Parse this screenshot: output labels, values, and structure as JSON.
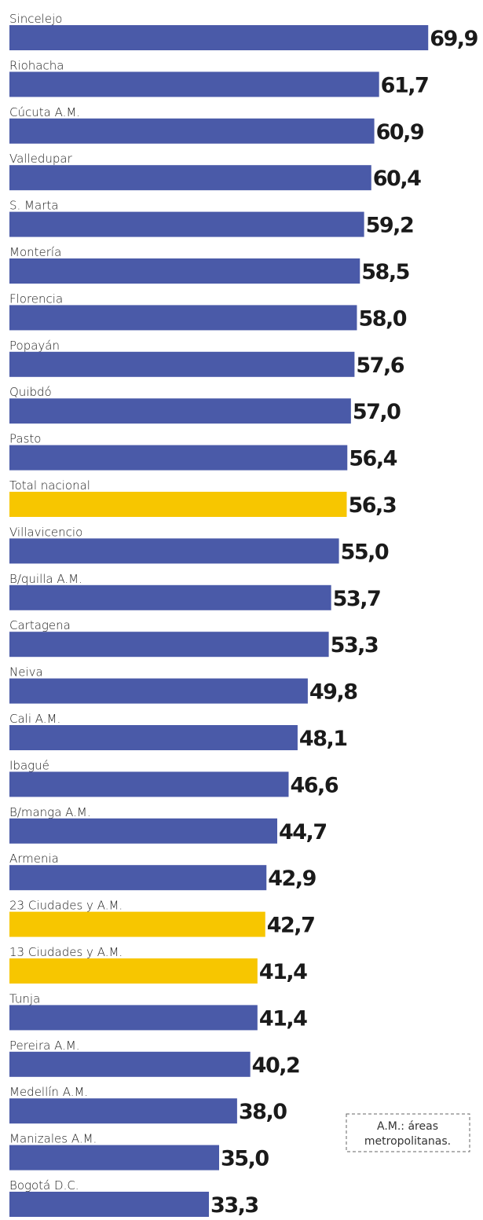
{
  "chart_data": {
    "type": "bar",
    "orientation": "horizontal",
    "categories": [
      "Sincelejo",
      "Riohacha",
      "Cúcuta A.M.",
      "Valledupar",
      "S. Marta",
      "Montería",
      "Florencia",
      "Popayán",
      "Quibdó",
      "Pasto",
      "Total nacional",
      "Villavicencio",
      "B/quilla A.M.",
      "Cartagena",
      "Neiva",
      "Cali A.M.",
      "Ibagué",
      "B/manga A.M.",
      "Armenia",
      "23 Ciudades y A.M.",
      "13 Ciudades y A.M.",
      "Tunja",
      "Pereira A.M.",
      "Medellín A.M.",
      "Manizales A.M.",
      "Bogotá D.C."
    ],
    "values": [
      69.9,
      61.7,
      60.9,
      60.4,
      59.2,
      58.5,
      58.0,
      57.6,
      57.0,
      56.4,
      56.3,
      55.0,
      53.7,
      53.3,
      49.8,
      48.1,
      46.6,
      44.7,
      42.9,
      42.7,
      41.4,
      41.4,
      40.2,
      38.0,
      35.0,
      33.3
    ],
    "value_labels": [
      "69,9",
      "61,7",
      "60,9",
      "60,4",
      "59,2",
      "58,5",
      "58,0",
      "57,6",
      "57,0",
      "56,4",
      "56,3",
      "55,0",
      "53,7",
      "53,3",
      "49,8",
      "48,1",
      "46,6",
      "44,7",
      "42,9",
      "42,7",
      "41,4",
      "41,4",
      "40,2",
      "38,0",
      "35,0",
      "33,3"
    ],
    "colors": [
      "#4a5aa8",
      "#4a5aa8",
      "#4a5aa8",
      "#4a5aa8",
      "#4a5aa8",
      "#4a5aa8",
      "#4a5aa8",
      "#4a5aa8",
      "#4a5aa8",
      "#4a5aa8",
      "#f7c600",
      "#4a5aa8",
      "#4a5aa8",
      "#4a5aa8",
      "#4a5aa8",
      "#4a5aa8",
      "#4a5aa8",
      "#4a5aa8",
      "#4a5aa8",
      "#f7c600",
      "#f7c600",
      "#4a5aa8",
      "#4a5aa8",
      "#4a5aa8",
      "#4a5aa8",
      "#4a5aa8"
    ],
    "xlim": [
      0,
      70
    ],
    "annotation": [
      "A.M.: áreas",
      "metropolitanas."
    ]
  }
}
